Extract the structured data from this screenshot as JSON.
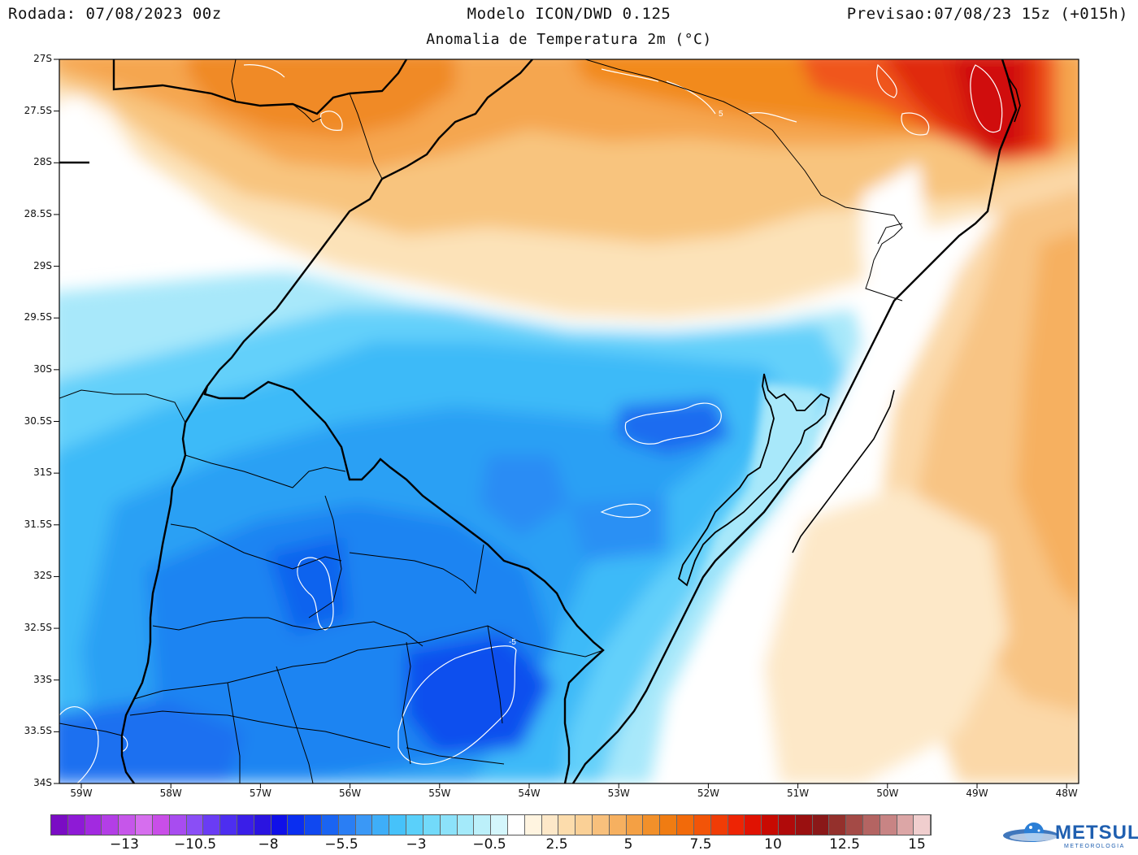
{
  "header": {
    "run": "Rodada: 07/08/2023 00z",
    "model": "Modelo ICON/DWD 0.125",
    "forecast": "Previsao:07/08/23 15z (+015h)",
    "subtitle": "Anomalia de Temperatura 2m (°C)"
  },
  "map": {
    "lat_labels": [
      "27S",
      "27.5S",
      "28S",
      "28.5S",
      "29S",
      "29.5S",
      "30S",
      "30.5S",
      "31S",
      "31.5S",
      "32S",
      "32.5S",
      "33S",
      "33.5S",
      "34S"
    ],
    "lon_labels": [
      "59W",
      "58W",
      "57W",
      "56W",
      "55W",
      "54W",
      "53W",
      "52W",
      "51W",
      "50W",
      "49W",
      "48W"
    ],
    "contour_labels": [
      "-5",
      "5",
      "-5"
    ]
  },
  "colorbar": {
    "labels": [
      "−13",
      "−10.5",
      "−8",
      "−5.5",
      "−3",
      "−0.5",
      "2.5",
      "5",
      "7.5",
      "10",
      "12.5",
      "15"
    ],
    "colors": [
      "#7a0cc4",
      "#8e1ad6",
      "#a22ae0",
      "#b33ee6",
      "#c656ea",
      "#d66eee",
      "#c94ee8",
      "#a84cf0",
      "#8a4ef6",
      "#6a3cf4",
      "#4d2ef0",
      "#3a1ee8",
      "#2a14e0",
      "#1010e8",
      "#0a2ef0",
      "#1048f0",
      "#1a64f2",
      "#2a7ef4",
      "#3a98f6",
      "#3eaef8",
      "#46c2fa",
      "#5ad0fa",
      "#72dafa",
      "#8ce2fa",
      "#a4eafa",
      "#bcf0fa",
      "#d4f6fc",
      "#ffffff",
      "#fff4e0",
      "#fde8c8",
      "#fcdcac",
      "#fad096",
      "#f8c07c",
      "#f6b060",
      "#f4a044",
      "#f2902a",
      "#f07c12",
      "#f26a0a",
      "#f25408",
      "#f03c06",
      "#ee2404",
      "#e01202",
      "#c80a02",
      "#b00a0a",
      "#9a1010",
      "#8a1818",
      "#94302c",
      "#a44a46",
      "#b46462",
      "#c88484",
      "#dca6a6",
      "#f0cece"
    ]
  },
  "logo": {
    "name": "METSUL",
    "tagline": "METEOROLOGIA"
  }
}
